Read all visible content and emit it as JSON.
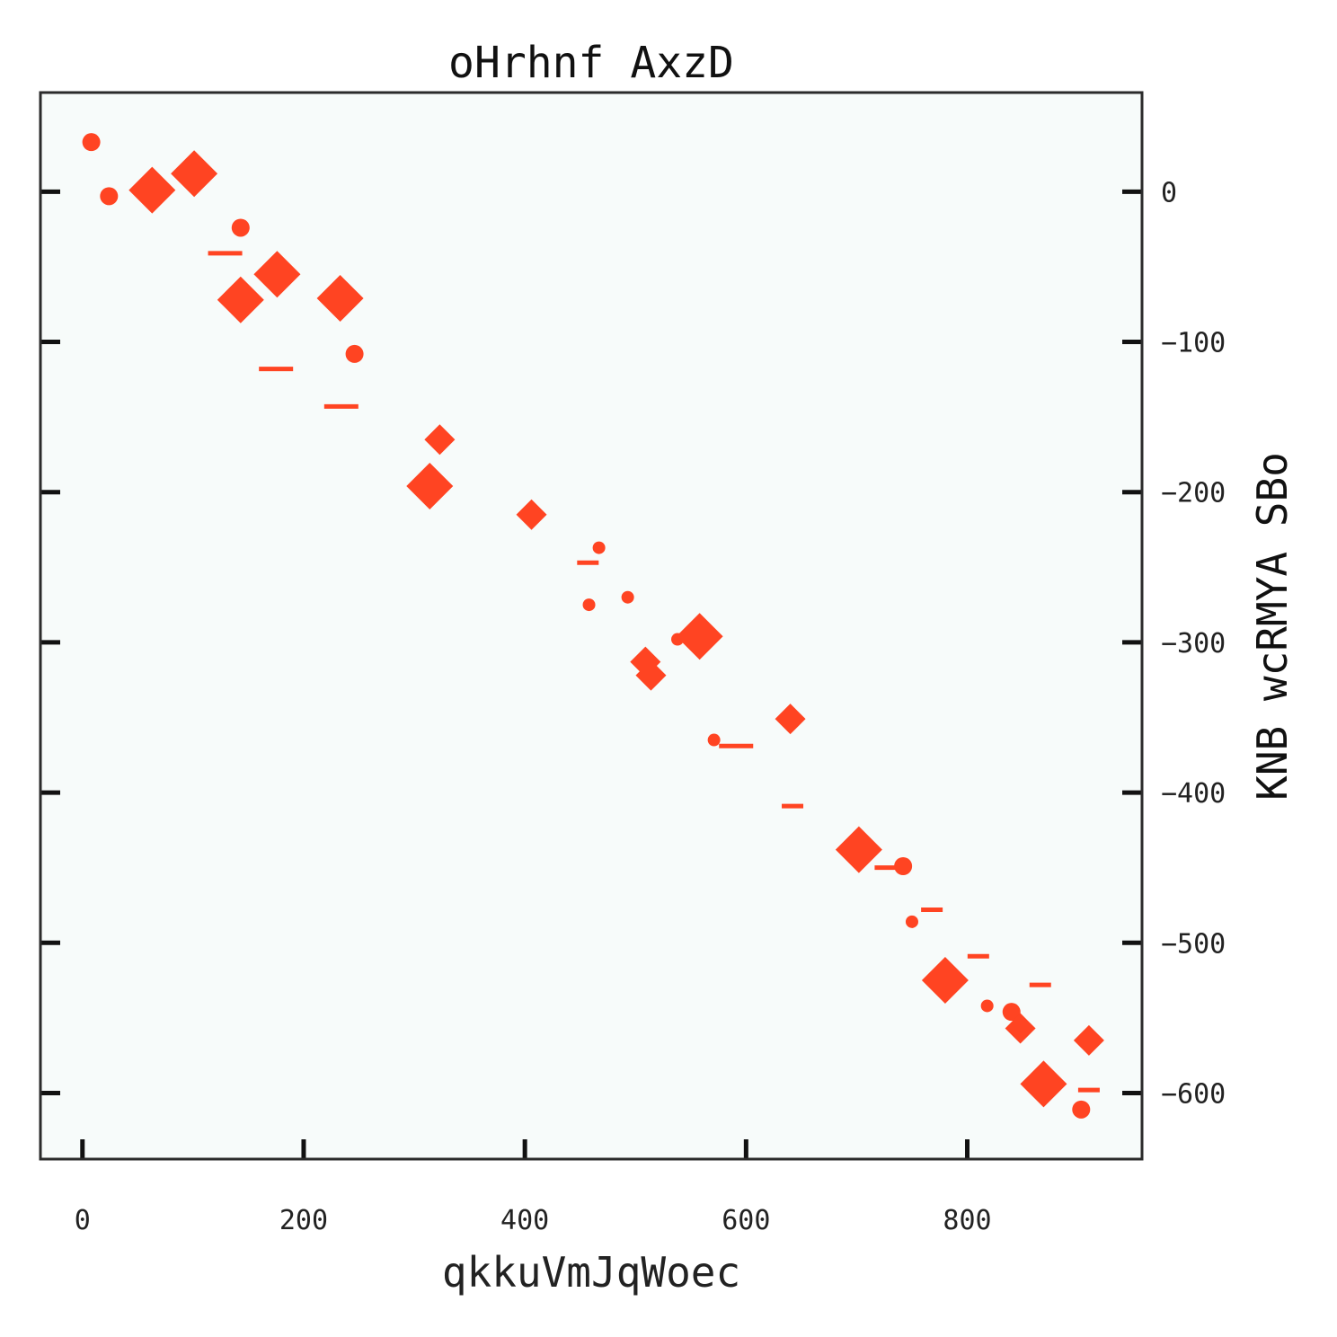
{
  "chart_data": {
    "type": "scatter",
    "title": "oHrhnf AxzD",
    "xlabel": "qkkuVmJqWoec",
    "ylabel": "KNB wcRMYA SBo",
    "xlim": [
      -38,
      958
    ],
    "ylim": [
      -644,
      66
    ],
    "x_ticks": [
      0,
      200,
      400,
      600,
      800
    ],
    "y_ticks": [
      0,
      -100,
      -200,
      -300,
      -400,
      -500,
      -600
    ],
    "y_axis_side": "right",
    "grid": false,
    "legend": "none",
    "colors": {
      "marker": "#ff4422",
      "plot_bg": "#f7fbfa",
      "frame": "#2b2b2b"
    },
    "series": [
      {
        "marker": "circle",
        "points": [
          {
            "x": 8,
            "y": 33,
            "size": 10
          },
          {
            "x": 24,
            "y": -3,
            "size": 10
          },
          {
            "x": 143,
            "y": -24,
            "size": 10
          },
          {
            "x": 246,
            "y": -108,
            "size": 10
          },
          {
            "x": 467,
            "y": -237,
            "size": 7
          },
          {
            "x": 493,
            "y": -270,
            "size": 7
          },
          {
            "x": 458,
            "y": -275,
            "size": 7
          },
          {
            "x": 538,
            "y": -298,
            "size": 7
          },
          {
            "x": 571,
            "y": -365,
            "size": 7
          },
          {
            "x": 742,
            "y": -449,
            "size": 10
          },
          {
            "x": 750,
            "y": -486,
            "size": 7
          },
          {
            "x": 818,
            "y": -542,
            "size": 7
          },
          {
            "x": 840,
            "y": -546,
            "size": 10
          },
          {
            "x": 903,
            "y": -611,
            "size": 10
          }
        ]
      },
      {
        "marker": "diamond",
        "points": [
          {
            "x": 63,
            "y": 1,
            "size": 26
          },
          {
            "x": 101,
            "y": 12,
            "size": 26
          },
          {
            "x": 143,
            "y": -72,
            "size": 26
          },
          {
            "x": 176,
            "y": -55,
            "size": 26
          },
          {
            "x": 233,
            "y": -71,
            "size": 26
          },
          {
            "x": 323,
            "y": -165,
            "size": 17
          },
          {
            "x": 314,
            "y": -196,
            "size": 26
          },
          {
            "x": 406,
            "y": -215,
            "size": 17
          },
          {
            "x": 509,
            "y": -313,
            "size": 17
          },
          {
            "x": 514,
            "y": -322,
            "size": 17
          },
          {
            "x": 558,
            "y": -296,
            "size": 26
          },
          {
            "x": 640,
            "y": -351,
            "size": 17
          },
          {
            "x": 702,
            "y": -438,
            "size": 26
          },
          {
            "x": 780,
            "y": -525,
            "size": 26
          },
          {
            "x": 848,
            "y": -557,
            "size": 17
          },
          {
            "x": 869,
            "y": -594,
            "size": 26
          },
          {
            "x": 910,
            "y": -565,
            "size": 17
          }
        ]
      },
      {
        "marker": "hline",
        "points": [
          {
            "x": 129,
            "y": -41,
            "size": 38
          },
          {
            "x": 175,
            "y": -118,
            "size": 38
          },
          {
            "x": 234,
            "y": -143,
            "size": 38
          },
          {
            "x": 457,
            "y": -247,
            "size": 24
          },
          {
            "x": 591,
            "y": -369,
            "size": 38
          },
          {
            "x": 642,
            "y": -409,
            "size": 24
          },
          {
            "x": 726,
            "y": -450,
            "size": 24
          },
          {
            "x": 768,
            "y": -478,
            "size": 24
          },
          {
            "x": 810,
            "y": -509,
            "size": 24
          },
          {
            "x": 866,
            "y": -528,
            "size": 24
          },
          {
            "x": 910,
            "y": -598,
            "size": 24
          }
        ]
      }
    ]
  }
}
